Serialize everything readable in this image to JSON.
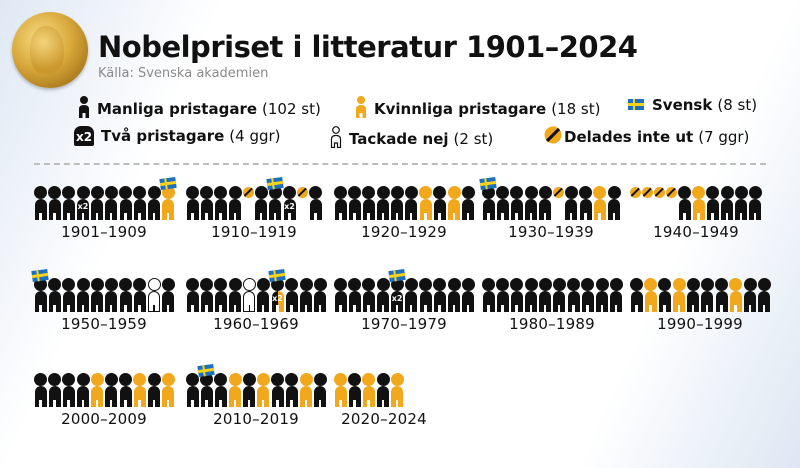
{
  "header": {
    "title": "Nobelpriset i litteratur 1901–2024",
    "source": "Källa: Svenska akademien",
    "medal_icon": "nobel-medal"
  },
  "legend": {
    "male": {
      "label": "Manliga pristagare",
      "count": "(102 st)"
    },
    "female": {
      "label": "Kvinnliga pristagare",
      "count": "(18 st)"
    },
    "swedish": {
      "label": "Svensk",
      "count": "(8 st)"
    },
    "two": {
      "label": "Två pristagare",
      "count": "(4 ggr)",
      "badge": "x2"
    },
    "declined": {
      "label": "Tackade nej",
      "count": "(2 st)"
    },
    "notawarded": {
      "label": "Delades inte ut",
      "count": "(7 ggr)"
    }
  },
  "colors": {
    "male": "#111111",
    "female": "#f2a81c",
    "flag_blue": "#1f6fbf",
    "flag_yellow": "#f5d21b"
  },
  "chart_data": {
    "type": "pictogram",
    "title": "Nobelpriset i litteratur 1901–2024",
    "source": "Källa: Svenska akademien",
    "legend": [
      "Manliga pristagare (102 st)",
      "Kvinnliga pristagare (18 st)",
      "Svensk (8 st)",
      "Två pristagare (4 ggr)",
      "Tackade nej (2 st)",
      "Delades inte ut (7 ggr)"
    ],
    "symbol_codes": {
      "M": "male",
      "F": "female",
      "X": "declined",
      "N": "not awarded",
      "H": "shared male+female",
      "x2": "two laureates",
      "swe": "Swedish"
    },
    "totals": {
      "male": 102,
      "female": 18,
      "swedish": 8,
      "two_laureates": 4,
      "declined": 2,
      "not_awarded": 7
    },
    "decades": [
      {
        "label": "1901–1909",
        "slots": [
          "M",
          "M",
          "M",
          "M:x2",
          "M",
          "M",
          "M",
          "M",
          "M",
          "F:swe"
        ]
      },
      {
        "label": "1910–1919",
        "slots": [
          "M",
          "M",
          "M",
          "M",
          "N",
          "M",
          "M:swe",
          "M:x2",
          "N",
          "M"
        ]
      },
      {
        "label": "1920–1929",
        "slots": [
          "M",
          "M",
          "M",
          "M",
          "M",
          "M",
          "F",
          "M",
          "F",
          "M"
        ]
      },
      {
        "label": "1930–1939",
        "slots": [
          "M:swe",
          "M",
          "M",
          "M",
          "M",
          "N",
          "M",
          "M",
          "F",
          "M"
        ]
      },
      {
        "label": "1940–1949",
        "slots": [
          "N",
          "N",
          "N",
          "N",
          "M",
          "F",
          "M",
          "M",
          "M",
          "M"
        ]
      },
      {
        "label": "1950–1959",
        "slots": [
          "M:swe",
          "M",
          "M",
          "M",
          "M",
          "M",
          "M",
          "M",
          "X",
          "M"
        ]
      },
      {
        "label": "1960–1969",
        "slots": [
          "M",
          "M",
          "M",
          "M",
          "X",
          "M",
          "H:x2:swe",
          "M",
          "M",
          "M"
        ]
      },
      {
        "label": "1970–1979",
        "slots": [
          "M",
          "M",
          "M",
          "M",
          "M:x2:swe",
          "M",
          "M",
          "M",
          "M",
          "M"
        ]
      },
      {
        "label": "1980–1989",
        "slots": [
          "M",
          "M",
          "M",
          "M",
          "M",
          "M",
          "M",
          "M",
          "M",
          "M"
        ]
      },
      {
        "label": "1990–1999",
        "slots": [
          "M",
          "F",
          "M",
          "F",
          "M",
          "M",
          "M",
          "F",
          "M",
          "M"
        ]
      },
      {
        "label": "2000–2009",
        "slots": [
          "M",
          "M",
          "M",
          "M",
          "F",
          "M",
          "M",
          "F",
          "M",
          "F"
        ]
      },
      {
        "label": "2010–2019",
        "slots": [
          "M",
          "M:swe",
          "M",
          "F",
          "M",
          "F",
          "M",
          "M",
          "F",
          "M"
        ]
      },
      {
        "label": "2020–2024",
        "slots": [
          "F",
          "M",
          "F",
          "M",
          "F"
        ]
      }
    ]
  }
}
